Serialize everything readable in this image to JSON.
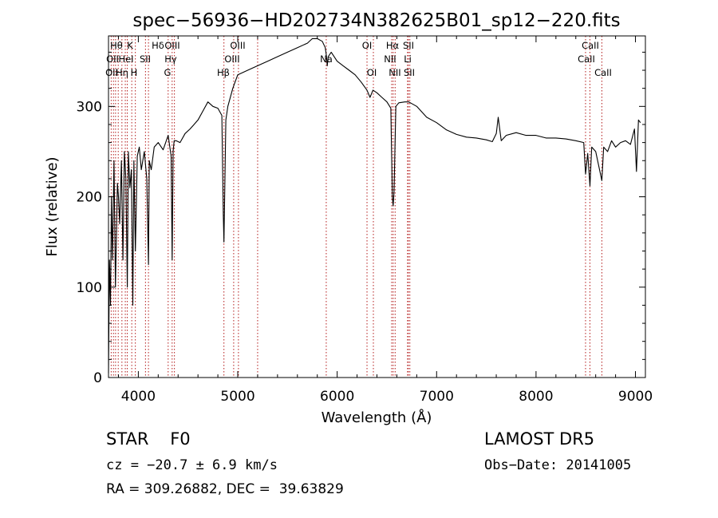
{
  "chart_data": {
    "type": "line",
    "title": "spec−56936−HD202734N382625B01_sp12−220.fits",
    "xlabel": "Wavelength (Å)",
    "ylabel": "Flux (relative)",
    "xlim": [
      3700,
      9100
    ],
    "ylim": [
      0,
      378
    ],
    "xticks": [
      4000,
      5000,
      6000,
      7000,
      8000,
      9000
    ],
    "yticks": [
      0,
      100,
      200,
      300
    ],
    "grid": false,
    "series": [
      {
        "x": [
          3700,
          3710,
          3720,
          3730,
          3740,
          3755,
          3770,
          3790,
          3800,
          3812,
          3830,
          3845,
          3860,
          3875,
          3889,
          3900,
          3915,
          3930,
          3945,
          3955,
          3970,
          3990,
          4010,
          4030,
          4060,
          4085,
          4102,
          4110,
          4130,
          4160,
          4200,
          4250,
          4300,
          4330,
          4340,
          4350,
          4360,
          4380,
          4420,
          4470,
          4520,
          4560,
          4600,
          4650,
          4700,
          4750,
          4800,
          4840,
          4855,
          4861,
          4868,
          4880,
          4900,
          4950,
          5000,
          5100,
          5200,
          5300,
          5400,
          5500,
          5600,
          5700,
          5750,
          5800,
          5850,
          5880,
          5893,
          5900,
          5910,
          5940,
          6000,
          6060,
          6120,
          6180,
          6240,
          6300,
          6330,
          6360,
          6400,
          6450,
          6500,
          6540,
          6555,
          6563,
          6572,
          6590,
          6620,
          6680,
          6720,
          6800,
          6900,
          7000,
          7100,
          7200,
          7300,
          7400,
          7500,
          7560,
          7600,
          7620,
          7650,
          7700,
          7800,
          7900,
          8000,
          8100,
          8200,
          8300,
          8400,
          8480,
          8498,
          8520,
          8542,
          8560,
          8600,
          8662,
          8680,
          8720,
          8760,
          8800,
          8850,
          8900,
          8950,
          8990,
          9010,
          9030,
          9050
        ],
        "values": [
          5,
          130,
          80,
          200,
          130,
          240,
          100,
          215,
          200,
          170,
          240,
          130,
          250,
          220,
          100,
          250,
          210,
          230,
          80,
          240,
          140,
          245,
          255,
          230,
          250,
          220,
          125,
          240,
          230,
          255,
          260,
          252,
          268,
          245,
          130,
          250,
          262,
          262,
          260,
          270,
          275,
          280,
          285,
          295,
          305,
          300,
          298,
          290,
          180,
          150,
          200,
          285,
          300,
          320,
          335,
          340,
          345,
          350,
          355,
          360,
          365,
          370,
          375,
          375,
          372,
          365,
          355,
          345,
          355,
          360,
          350,
          345,
          340,
          335,
          327,
          318,
          310,
          318,
          315,
          310,
          305,
          298,
          200,
          190,
          205,
          300,
          304,
          305,
          305,
          300,
          288,
          282,
          274,
          269,
          266,
          265,
          263,
          261,
          270,
          288,
          262,
          268,
          271,
          268,
          268,
          265,
          265,
          264,
          262,
          260,
          225,
          248,
          212,
          255,
          250,
          218,
          255,
          250,
          262,
          255,
          260,
          262,
          258,
          275,
          228,
          285,
          282
        ]
      }
    ],
    "annotations": {
      "row1": [
        "Hθ",
        "K",
        "Hδ",
        "OIII",
        "OIII",
        "OI",
        "Hα",
        "SII",
        "CaII"
      ],
      "row2": [
        "OII",
        "HeI",
        "SII",
        "Hγ",
        "OIII",
        "Na",
        "NII",
        "Li",
        "CaII"
      ],
      "row3": [
        "OII",
        "Hη",
        "H",
        "G",
        "Hβ",
        "OI",
        "NII",
        "SII",
        "CaII"
      ]
    }
  },
  "footer": {
    "object_class": "STAR",
    "subclass": "F0",
    "survey": "LAMOST DR5",
    "redshift_text": "cz = −20.7 ± 6.9 km/s",
    "obs_date": "Obs−Date: 20141005",
    "ra_dec": "RA = 309.26882, DEC =  39.63829"
  }
}
